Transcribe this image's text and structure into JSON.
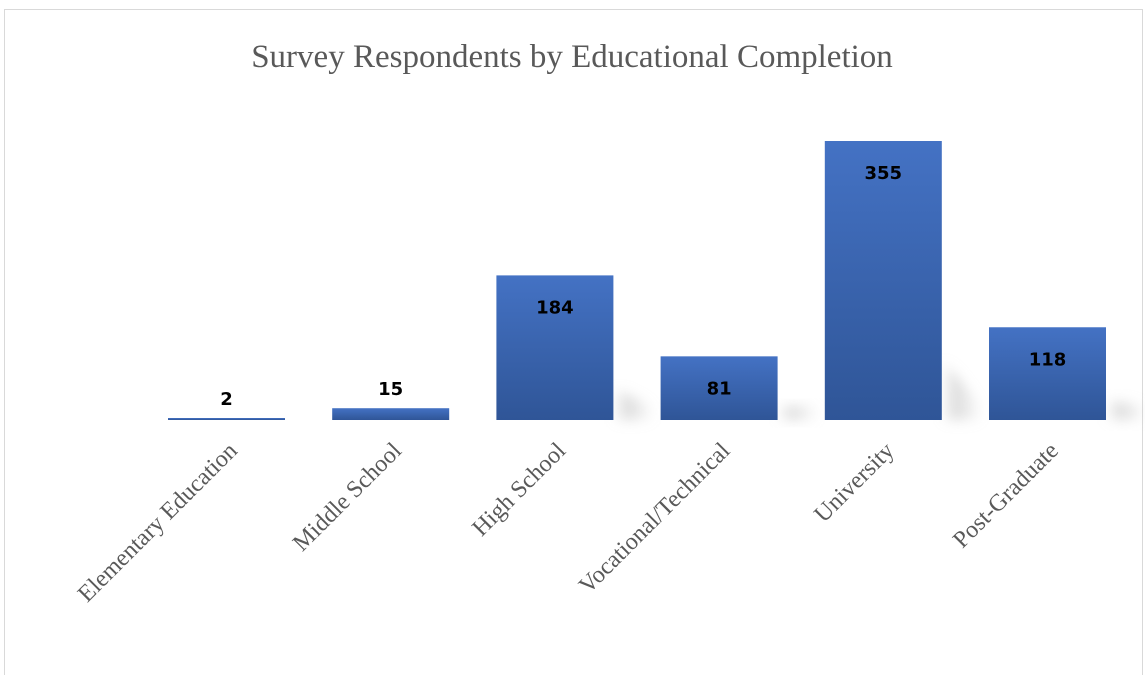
{
  "chart_data": {
    "type": "bar",
    "title": "Survey Respondents by Educational Completion",
    "categories": [
      "Elementary Education",
      "Middle School",
      "High School",
      "Vocational/Technical",
      "University",
      "Post-Graduate"
    ],
    "values": [
      2,
      15,
      184,
      81,
      355,
      118
    ],
    "xlabel": "",
    "ylabel": "",
    "ylim": [
      0,
      355
    ],
    "grid": false,
    "legend": "none",
    "data_labels": true,
    "colors": {
      "bar_top": "#4472c4",
      "bar_bottom": "#2f5597",
      "shadow": "#bfbfbf",
      "title": "#595959",
      "axis_text": "#595959",
      "value_text": "#000000",
      "border": "#d9d9d9"
    }
  }
}
